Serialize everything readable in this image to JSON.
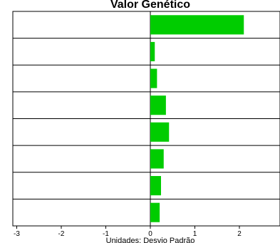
{
  "chart_data": {
    "type": "bar",
    "orientation": "horizontal",
    "title": "Valor Genético",
    "xlabel": "Unidades: Desvio Padrão",
    "ylabel": "",
    "xlim": [
      -3,
      2.9
    ],
    "x_ticks": [
      -3,
      -2,
      -1,
      0,
      1,
      2
    ],
    "x_tick_labels": [
      "-3",
      "-2",
      "-1",
      "0",
      "1",
      "2"
    ],
    "values": [
      2.1,
      0.1,
      0.15,
      0.35,
      0.42,
      0.3,
      0.24,
      0.21
    ],
    "bar_color": "#00cc00",
    "grid": "horizontal",
    "legend": "none"
  }
}
